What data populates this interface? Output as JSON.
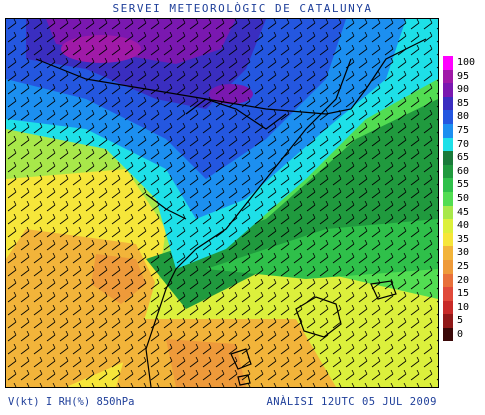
{
  "header": {
    "title": "SERVEI METEOROLÒGIC DE CATALUNYA"
  },
  "footer": {
    "variables": "V(kt) I RH(%) 850hPa",
    "analysis": "ANÀLISI 12UTC 05 JUL 2009"
  },
  "legend": {
    "items": [
      {
        "label": "100",
        "color": "#ff00ff"
      },
      {
        "label": "95",
        "color": "#a01aa8"
      },
      {
        "label": "90",
        "color": "#7a18b0"
      },
      {
        "label": "85",
        "color": "#3a2ec0"
      },
      {
        "label": "80",
        "color": "#2457e0"
      },
      {
        "label": "75",
        "color": "#1c8ff0"
      },
      {
        "label": "70",
        "color": "#1ee0e8"
      },
      {
        "label": "65",
        "color": "#1a7a3a"
      },
      {
        "label": "60",
        "color": "#209a3e"
      },
      {
        "label": "55",
        "color": "#2fc04a"
      },
      {
        "label": "50",
        "color": "#52dd52"
      },
      {
        "label": "45",
        "color": "#a8e84a"
      },
      {
        "label": "40",
        "color": "#dcf03c"
      },
      {
        "label": "35",
        "color": "#f6e63a"
      },
      {
        "label": "30",
        "color": "#f2b43a"
      },
      {
        "label": "25",
        "color": "#ee9a3a"
      },
      {
        "label": "20",
        "color": "#e8703a"
      },
      {
        "label": "15",
        "color": "#e04a3a"
      },
      {
        "label": "10",
        "color": "#c82a28"
      },
      {
        "label": "5",
        "color": "#901818"
      },
      {
        "label": "0",
        "color": "#3a0808"
      }
    ]
  }
}
